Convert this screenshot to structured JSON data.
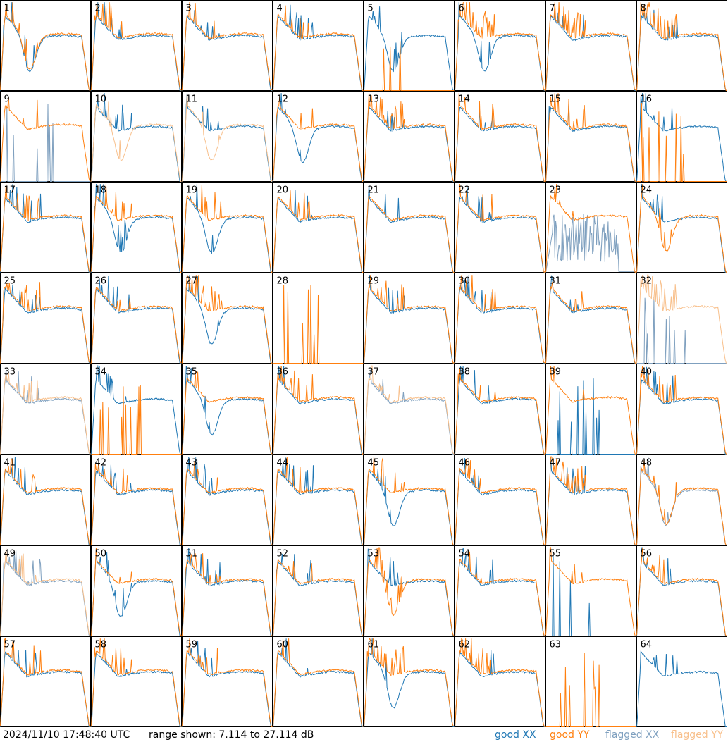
{
  "footer": {
    "timestamp": "2024/11/10 17:48:40 UTC",
    "range_text": "range shown: 7.114 to 27.114 dB",
    "legend": {
      "good_xx": "good XX",
      "good_yy": "good YY",
      "flagged_xx": "flagged XX",
      "flagged_yy": "flagged YY"
    }
  },
  "colors": {
    "good_xx": "#1f77b4",
    "good_yy": "#ff7f0e",
    "flagged_xx": "#7fa0bf",
    "flagged_yy": "#f8c08c",
    "frame": "#000000"
  },
  "chart_data": {
    "type": "line",
    "layout": "8x8 small multiples",
    "ylim_db": [
      7.114,
      27.114
    ],
    "panels": [
      {
        "label": "1",
        "xx": "good",
        "yy": "good",
        "xx_shape": "dip",
        "yy_shape": "dip"
      },
      {
        "label": "2",
        "xx": "good",
        "yy": "good",
        "xx_shape": "flat",
        "yy_shape": "flat"
      },
      {
        "label": "3",
        "xx": "good",
        "yy": "good",
        "xx_shape": "flat",
        "yy_shape": "flat"
      },
      {
        "label": "4",
        "xx": "good",
        "yy": "good",
        "xx_shape": "flat",
        "yy_shape": "flat"
      },
      {
        "label": "5",
        "xx": "good",
        "yy": "good",
        "xx_shape": "dip",
        "yy_shape": "dead"
      },
      {
        "label": "6",
        "xx": "good",
        "yy": "good",
        "xx_shape": "dip",
        "yy_shape": "spiky"
      },
      {
        "label": "7",
        "xx": "good",
        "yy": "good",
        "xx_shape": "flat",
        "yy_shape": "spiky"
      },
      {
        "label": "8",
        "xx": "good",
        "yy": "good",
        "xx_shape": "flat",
        "yy_shape": "spiky"
      },
      {
        "label": "9",
        "xx": "flagged",
        "yy": "good",
        "xx_shape": "dead",
        "yy_shape": "flat"
      },
      {
        "label": "10",
        "xx": "good",
        "yy": "flagged",
        "xx_shape": "flat",
        "yy_shape": "dip"
      },
      {
        "label": "11",
        "xx": "good",
        "yy": "flagged",
        "xx_shape": "flat",
        "yy_shape": "dip"
      },
      {
        "label": "12",
        "xx": "good",
        "yy": "good",
        "xx_shape": "dip",
        "yy_shape": "flat"
      },
      {
        "label": "13",
        "xx": "good",
        "yy": "good",
        "xx_shape": "flat",
        "yy_shape": "spiky"
      },
      {
        "label": "14",
        "xx": "good",
        "yy": "good",
        "xx_shape": "flat",
        "yy_shape": "flat"
      },
      {
        "label": "15",
        "xx": "good",
        "yy": "good",
        "xx_shape": "flat",
        "yy_shape": "flat"
      },
      {
        "label": "16",
        "xx": "good",
        "yy": "good",
        "xx_shape": "flat",
        "yy_shape": "dead"
      },
      {
        "label": "17",
        "xx": "good",
        "yy": "good",
        "xx_shape": "flat",
        "yy_shape": "flat"
      },
      {
        "label": "18",
        "xx": "good",
        "yy": "good",
        "xx_shape": "dip",
        "yy_shape": "flat"
      },
      {
        "label": "19",
        "xx": "good",
        "yy": "good",
        "xx_shape": "dip",
        "yy_shape": "flat"
      },
      {
        "label": "20",
        "xx": "good",
        "yy": "good",
        "xx_shape": "flat",
        "yy_shape": "flat"
      },
      {
        "label": "21",
        "xx": "good",
        "yy": "good",
        "xx_shape": "flat",
        "yy_shape": "flat"
      },
      {
        "label": "22",
        "xx": "good",
        "yy": "good",
        "xx_shape": "flat",
        "yy_shape": "flat"
      },
      {
        "label": "23",
        "xx": "flagged",
        "yy": "good",
        "xx_shape": "noise",
        "yy_shape": "flat"
      },
      {
        "label": "24",
        "xx": "good",
        "yy": "good",
        "xx_shape": "flat",
        "yy_shape": "dip"
      },
      {
        "label": "25",
        "xx": "good",
        "yy": "good",
        "xx_shape": "flat",
        "yy_shape": "flat"
      },
      {
        "label": "26",
        "xx": "good",
        "yy": "good",
        "xx_shape": "flat",
        "yy_shape": "flat"
      },
      {
        "label": "27",
        "xx": "good",
        "yy": "good",
        "xx_shape": "dip",
        "yy_shape": "spiky"
      },
      {
        "label": "28",
        "xx": "good",
        "yy": "good",
        "xx_shape": "none",
        "yy_shape": "dead"
      },
      {
        "label": "29",
        "xx": "good",
        "yy": "good",
        "xx_shape": "flat",
        "yy_shape": "flat"
      },
      {
        "label": "30",
        "xx": "good",
        "yy": "good",
        "xx_shape": "flat",
        "yy_shape": "flat"
      },
      {
        "label": "31",
        "xx": "good",
        "yy": "good",
        "xx_shape": "flat",
        "yy_shape": "flat"
      },
      {
        "label": "32",
        "xx": "flagged",
        "yy": "flagged",
        "xx_shape": "dead",
        "yy_shape": "spiky"
      },
      {
        "label": "33",
        "xx": "flagged",
        "yy": "flagged",
        "xx_shape": "flat",
        "yy_shape": "flat"
      },
      {
        "label": "34",
        "xx": "good",
        "yy": "good",
        "xx_shape": "flat",
        "yy_shape": "dead"
      },
      {
        "label": "35",
        "xx": "good",
        "yy": "good",
        "xx_shape": "dip",
        "yy_shape": "flat"
      },
      {
        "label": "36",
        "xx": "good",
        "yy": "good",
        "xx_shape": "flat",
        "yy_shape": "flat"
      },
      {
        "label": "37",
        "xx": "flagged",
        "yy": "flagged",
        "xx_shape": "flat",
        "yy_shape": "flat"
      },
      {
        "label": "38",
        "xx": "good",
        "yy": "good",
        "xx_shape": "flat",
        "yy_shape": "flat"
      },
      {
        "label": "39",
        "xx": "good",
        "yy": "good",
        "xx_shape": "dead",
        "yy_shape": "flat"
      },
      {
        "label": "40",
        "xx": "good",
        "yy": "good",
        "xx_shape": "flat",
        "yy_shape": "flat"
      },
      {
        "label": "41",
        "xx": "good",
        "yy": "good",
        "xx_shape": "flat",
        "yy_shape": "flat"
      },
      {
        "label": "42",
        "xx": "good",
        "yy": "good",
        "xx_shape": "flat",
        "yy_shape": "flat"
      },
      {
        "label": "43",
        "xx": "good",
        "yy": "good",
        "xx_shape": "flat",
        "yy_shape": "flat"
      },
      {
        "label": "44",
        "xx": "good",
        "yy": "good",
        "xx_shape": "flat",
        "yy_shape": "flat"
      },
      {
        "label": "45",
        "xx": "good",
        "yy": "good",
        "xx_shape": "dip",
        "yy_shape": "flat"
      },
      {
        "label": "46",
        "xx": "good",
        "yy": "good",
        "xx_shape": "flat",
        "yy_shape": "flat"
      },
      {
        "label": "47",
        "xx": "good",
        "yy": "good",
        "xx_shape": "flat",
        "yy_shape": "spiky"
      },
      {
        "label": "48",
        "xx": "flagged",
        "yy": "good",
        "xx_shape": "dip",
        "yy_shape": "dip"
      },
      {
        "label": "49",
        "xx": "flagged",
        "yy": "flagged",
        "xx_shape": "flat",
        "yy_shape": "flat"
      },
      {
        "label": "50",
        "xx": "good",
        "yy": "good",
        "xx_shape": "dip",
        "yy_shape": "flat"
      },
      {
        "label": "51",
        "xx": "good",
        "yy": "good",
        "xx_shape": "flat",
        "yy_shape": "flat"
      },
      {
        "label": "52",
        "xx": "good",
        "yy": "good",
        "xx_shape": "flat",
        "yy_shape": "flat"
      },
      {
        "label": "53",
        "xx": "good",
        "yy": "good",
        "xx_shape": "flat",
        "yy_shape": "dip"
      },
      {
        "label": "54",
        "xx": "good",
        "yy": "good",
        "xx_shape": "flat",
        "yy_shape": "flat"
      },
      {
        "label": "55",
        "xx": "good",
        "yy": "good",
        "xx_shape": "dead",
        "yy_shape": "flat"
      },
      {
        "label": "56",
        "xx": "good",
        "yy": "good",
        "xx_shape": "flat",
        "yy_shape": "flat"
      },
      {
        "label": "57",
        "xx": "good",
        "yy": "good",
        "xx_shape": "flat",
        "yy_shape": "flat"
      },
      {
        "label": "58",
        "xx": "good",
        "yy": "good",
        "xx_shape": "flat",
        "yy_shape": "spiky"
      },
      {
        "label": "59",
        "xx": "good",
        "yy": "good",
        "xx_shape": "flat",
        "yy_shape": "flat"
      },
      {
        "label": "60",
        "xx": "good",
        "yy": "good",
        "xx_shape": "flat",
        "yy_shape": "flat"
      },
      {
        "label": "61",
        "xx": "good",
        "yy": "good",
        "xx_shape": "dip",
        "yy_shape": "spiky"
      },
      {
        "label": "62",
        "xx": "good",
        "yy": "good",
        "xx_shape": "flat",
        "yy_shape": "spiky"
      },
      {
        "label": "63",
        "xx": "good",
        "yy": "good",
        "xx_shape": "none",
        "yy_shape": "dead"
      },
      {
        "label": "64",
        "xx": "good",
        "yy": "good",
        "xx_shape": "flat",
        "yy_shape": "none"
      }
    ]
  }
}
